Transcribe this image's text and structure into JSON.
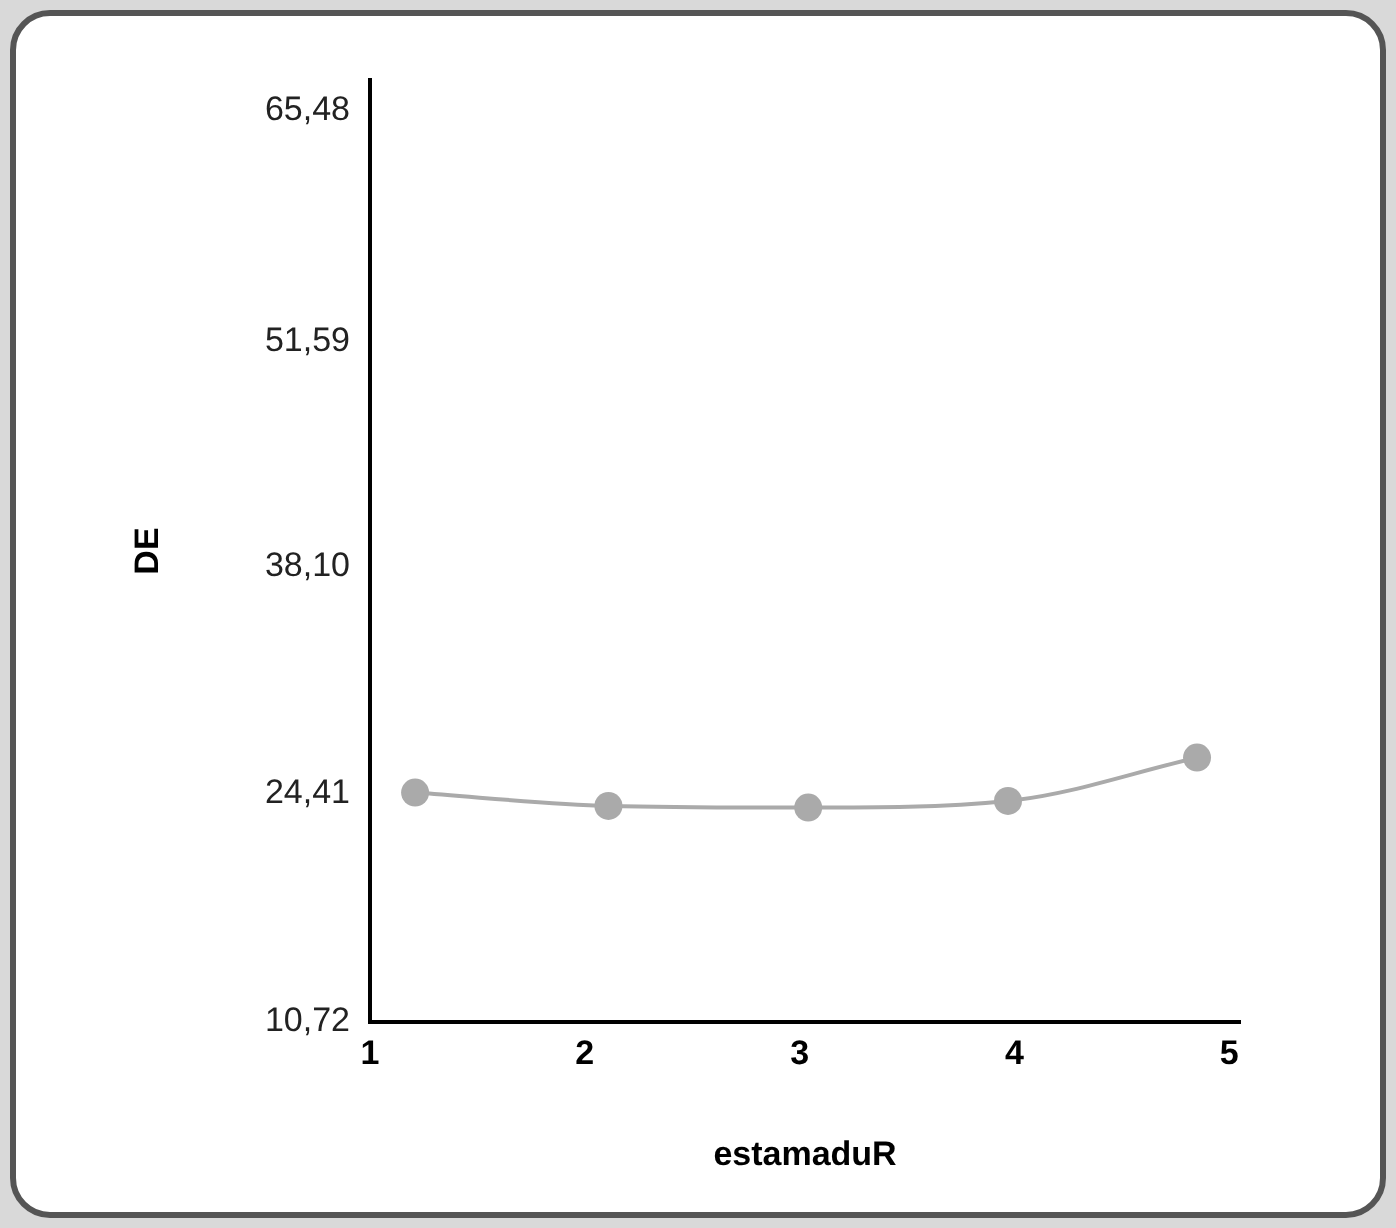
{
  "chart_data": {
    "type": "line",
    "xlabel": "estamaduR",
    "ylabel": "DE",
    "x": [
      1.21,
      2.11,
      3.04,
      3.97,
      4.85
    ],
    "series": [
      {
        "color": "#aaaaaa",
        "values": [
          24.5,
          23.7,
          23.6,
          24.0,
          26.6
        ]
      }
    ],
    "xlim": [
      1,
      5.05
    ],
    "xticks": [
      1,
      2,
      3,
      4,
      5
    ],
    "ylim": [
      10.72,
      67.3
    ],
    "yticks": [
      {
        "value": 10.72,
        "label": "10,72"
      },
      {
        "value": 24.41,
        "label": "24,41"
      },
      {
        "value": 38.1,
        "label": "38,10"
      },
      {
        "value": 51.59,
        "label": "51,59"
      },
      {
        "value": 65.48,
        "label": "65,48"
      }
    ],
    "grid": false,
    "legend": false,
    "marker": "circle",
    "line_style": "solid"
  }
}
